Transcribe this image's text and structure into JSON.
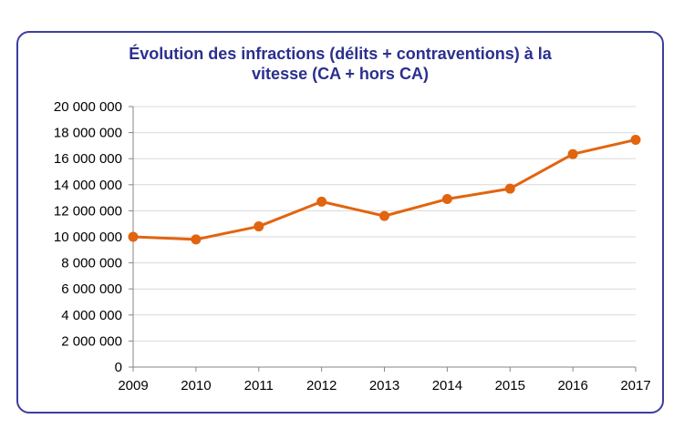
{
  "chart_data": {
    "type": "line",
    "title_lines": [
      "Évolution des infractions (délits + contraventions) à la",
      "vitesse (CA + hors CA)"
    ],
    "categories": [
      "2009",
      "2010",
      "2011",
      "2012",
      "2013",
      "2014",
      "2015",
      "2016",
      "2017"
    ],
    "series": [
      {
        "values": [
          10000000,
          9800000,
          10800000,
          12700000,
          11600000,
          12900000,
          13700000,
          16350000,
          17450000
        ]
      }
    ],
    "y_ticks": [
      "0",
      "2 000 000",
      "4 000 000",
      "6 000 000",
      "8 000 000",
      "10 000 000",
      "12 000 000",
      "14 000 000",
      "16 000 000",
      "18 000 000",
      "20 000 000"
    ],
    "ylim": [
      0,
      20000000
    ],
    "y_step": 2000000,
    "grid": true,
    "legend": "none",
    "colors": {
      "line": "#e2640f",
      "title": "#2b2f8f",
      "frame": "#3c3ea0",
      "grid": "#d9d9d9",
      "axis": "#868686"
    }
  }
}
